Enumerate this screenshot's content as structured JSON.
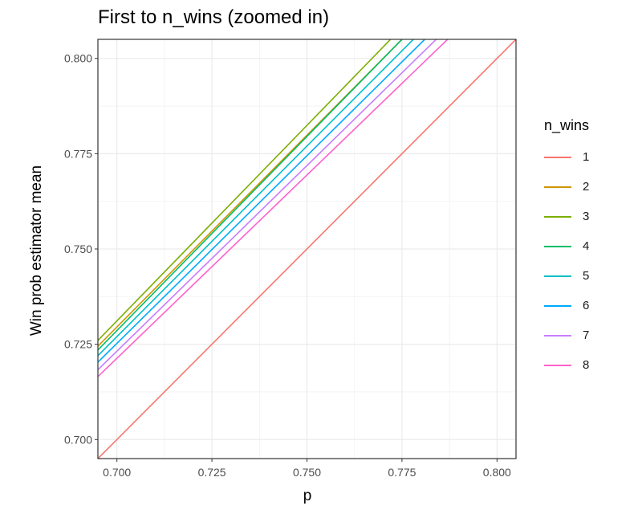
{
  "chart_data": {
    "type": "line",
    "title": "First to n_wins (zoomed in)",
    "xlabel": "p",
    "ylabel": "Win prob estimator mean",
    "xlim": [
      0.695,
      0.805
    ],
    "ylim": [
      0.695,
      0.805
    ],
    "x_ticks": [
      "0.700",
      "0.725",
      "0.750",
      "0.775",
      "0.800"
    ],
    "y_ticks": [
      "0.700",
      "0.725",
      "0.750",
      "0.775",
      "0.800"
    ],
    "grid": true,
    "legend_title": "n_wins",
    "legend_position": "right",
    "series": [
      {
        "name": "1",
        "color": "#F8766D",
        "x": [
          0.695,
          0.805
        ],
        "y": [
          0.695,
          0.805
        ]
      },
      {
        "name": "2",
        "color": "#CD9600",
        "x": [
          0.695,
          0.775
        ],
        "y": [
          0.7245,
          0.805
        ]
      },
      {
        "name": "3",
        "color": "#7CAE00",
        "x": [
          0.695,
          0.772
        ],
        "y": [
          0.726,
          0.805
        ]
      },
      {
        "name": "4",
        "color": "#00BE67",
        "x": [
          0.695,
          0.775
        ],
        "y": [
          0.7235,
          0.805
        ]
      },
      {
        "name": "5",
        "color": "#00BFC4",
        "x": [
          0.695,
          0.778
        ],
        "y": [
          0.722,
          0.805
        ]
      },
      {
        "name": "6",
        "color": "#00A9FF",
        "x": [
          0.695,
          0.781
        ],
        "y": [
          0.7203,
          0.805
        ]
      },
      {
        "name": "7",
        "color": "#C77CFF",
        "x": [
          0.695,
          0.784
        ],
        "y": [
          0.7183,
          0.805
        ]
      },
      {
        "name": "8",
        "color": "#FF61CC",
        "x": [
          0.695,
          0.787
        ],
        "y": [
          0.7165,
          0.805
        ]
      }
    ]
  }
}
